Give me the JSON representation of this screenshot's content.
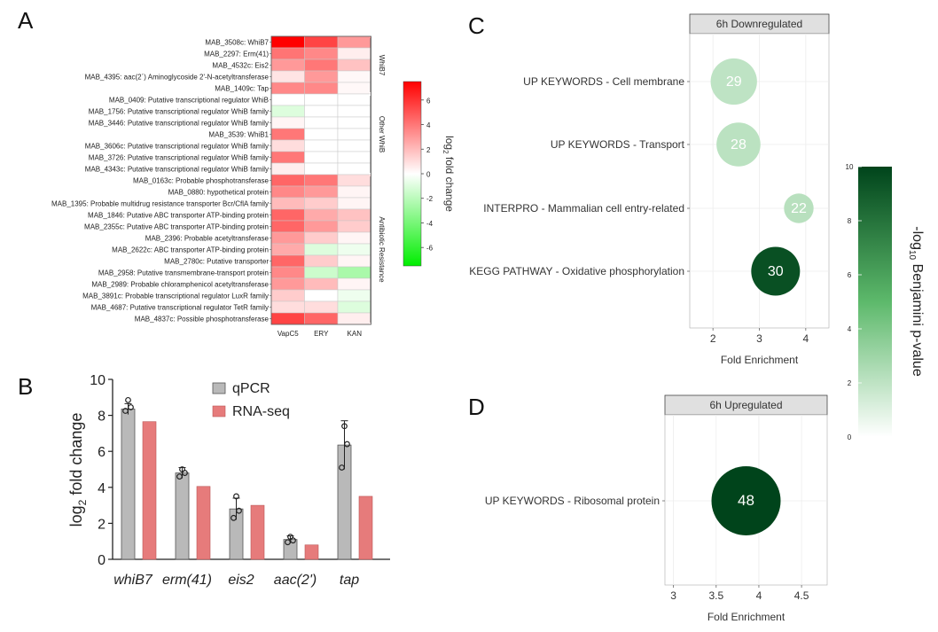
{
  "panels": {
    "a": "A",
    "b": "B",
    "c": "C",
    "d": "D"
  },
  "colors": {
    "heat_high": "#ff0000",
    "heat_mid": "#ffffff",
    "heat_low": "#00ee00",
    "qpcr": "#b9b9b9",
    "rnaseq": "#e67b7b",
    "strip": "#e0e0e0",
    "bubble_low": "#ffffff",
    "bubble_high": "#00441b"
  },
  "chart_data": [
    {
      "type": "heatmap",
      "panel": "A",
      "columns": [
        "VapC5",
        "ERY",
        "KAN"
      ],
      "rows": [
        "MAB_3508c: WhiB7",
        "MAB_2297: Erm(41)",
        "MAB_4532c: Eis2",
        "MAB_4395: aac(2´) Aminoglycoside 2'-N-acetyltransferase",
        "MAB_1409c: Tap",
        "MAB_0409: Putative transcriptional regulator WhiB",
        "MAB_1756: Putative transcriptional regulator WhiB family",
        "MAB_3446: Putative transcriptional regulator WhiB family",
        "MAB_3539: WhiB1",
        "MAB_3606c: Putative transcriptional regulator WhiB family",
        "MAB_3726: Putative transcriptional regulator WhiB family",
        "MAB_4343c: Putative transcriptional regulator WhiB family",
        "MAB_0163c: Probable phosphotransferase",
        "MAB_0880: hypothetical protein",
        "MAB_1395: Probable multidrug resistance transporter Bcr/CflA family",
        "MAB_1846: Putative ABC transporter ATP-binding protein",
        "MAB_2355c: Putative ABC transporter ATP-binding protein",
        "MAB_2396: Probable acetyltransferase",
        "MAB_2622c: ABC transporter ATP-binding protein",
        "MAB_2780c: Putative transporter",
        "MAB_2958: Putative transmembrane-transport protein",
        "MAB_2989: Probable chloramphenicol acetyltransferase",
        "MAB_3891c: Probable transcriptional regulator LuxR family",
        "MAB_4687: Putative transcriptional regulator TetR family",
        "MAB_4837c: Possible phosphotransferase"
      ],
      "values": [
        [
          7.7,
          5.5,
          3.0
        ],
        [
          4.1,
          3.5,
          0.5
        ],
        [
          3.0,
          4.0,
          1.8
        ],
        [
          0.8,
          3.0,
          0.2
        ],
        [
          3.5,
          3.5,
          0.2
        ],
        [
          0.0,
          0.0,
          0.0
        ],
        [
          -1.0,
          0.0,
          0.0
        ],
        [
          0.3,
          0.0,
          0.0
        ],
        [
          4.0,
          0.0,
          0.0
        ],
        [
          1.0,
          0.0,
          0.0
        ],
        [
          4.0,
          0.0,
          0.0
        ],
        [
          0.5,
          0.0,
          0.0
        ],
        [
          4.5,
          4.0,
          1.0
        ],
        [
          3.5,
          3.0,
          0.3
        ],
        [
          2.0,
          1.5,
          0.3
        ],
        [
          4.5,
          2.5,
          1.8
        ],
        [
          4.5,
          3.0,
          1.5
        ],
        [
          3.0,
          1.5,
          0.3
        ],
        [
          2.5,
          -1.0,
          -0.5
        ],
        [
          4.5,
          1.5,
          0.3
        ],
        [
          3.5,
          -1.5,
          -2.5
        ],
        [
          3.0,
          2.0,
          0.3
        ],
        [
          1.5,
          0.0,
          -0.5
        ],
        [
          1.0,
          1.0,
          -1.0
        ],
        [
          5.5,
          4.5,
          0.5
        ]
      ],
      "groups": [
        {
          "label": "WhiB7",
          "start": 0,
          "end": 4
        },
        {
          "label": "Other WhiB",
          "start": 5,
          "end": 11
        },
        {
          "label": "Antibiotic Resistance",
          "start": 12,
          "end": 24
        }
      ],
      "colorbar": {
        "ticks": [
          6,
          4,
          2,
          0,
          -2,
          -4,
          -6
        ],
        "range": [
          -7.5,
          7.5
        ],
        "label_pre": "log",
        "label_sub": "2",
        "label_post": " fold change"
      }
    },
    {
      "type": "bar",
      "panel": "B",
      "categories": [
        "whiB7",
        "erm(41)",
        "eis2",
        "aac(2')",
        "tap"
      ],
      "series": [
        {
          "name": "qPCR",
          "values": [
            8.35,
            4.8,
            2.8,
            1.1,
            6.35
          ],
          "error": [
            0.3,
            0.3,
            0.6,
            0.2,
            1.35
          ],
          "points": [
            [
              8.25,
              8.45,
              8.85
            ],
            [
              4.6,
              4.8,
              5.0
            ],
            [
              2.3,
              2.7,
              3.5
            ],
            [
              0.95,
              1.05,
              1.25
            ],
            [
              5.1,
              6.4,
              7.4
            ]
          ]
        },
        {
          "name": "RNA-seq",
          "values": [
            7.65,
            4.05,
            3.0,
            0.8,
            3.5
          ]
        }
      ],
      "ylabel_pre": "log",
      "ylabel_sub": "2",
      "ylabel_post": " fold change",
      "ylim": [
        0,
        10
      ],
      "yticks": [
        0,
        2,
        4,
        6,
        8,
        10
      ]
    },
    {
      "type": "scatter",
      "panel": "C",
      "strip_title": "6h Downregulated",
      "terms": [
        {
          "label": "UP KEYWORDS - Cell membrane",
          "fold_enrichment": 2.45,
          "count": 29,
          "neg_log10_p": 2.0
        },
        {
          "label": "UP KEYWORDS - Transport",
          "fold_enrichment": 2.55,
          "count": 28,
          "neg_log10_p": 2.1
        },
        {
          "label": "INTERPRO - Mammalian cell entry-related",
          "fold_enrichment": 3.85,
          "count": 22,
          "neg_log10_p": 2.2
        },
        {
          "label": "KEGG PATHWAY - Oxidative phosphorylation",
          "fold_enrichment": 3.35,
          "count": 30,
          "neg_log10_p": 9.5
        }
      ],
      "xlabel": "Fold Enrichment",
      "xticks": [
        2,
        3,
        4
      ],
      "xlim": [
        1.5,
        4.5
      ]
    },
    {
      "type": "scatter",
      "panel": "D",
      "strip_title": "6h Upregulated",
      "terms": [
        {
          "label": "UP KEYWORDS - Ribosomal protein",
          "fold_enrichment": 3.85,
          "count": 48,
          "neg_log10_p": 10
        }
      ],
      "xlabel": "Fold Enrichment",
      "xticks": [
        "3",
        "3.5",
        "4",
        "4.5"
      ],
      "xlim": [
        2.9,
        4.8
      ]
    },
    {
      "type": "colorbar",
      "panel": "CD",
      "ticks": [
        10,
        8,
        6,
        4,
        2,
        0
      ],
      "range": [
        0,
        10
      ],
      "label_pre": "-log",
      "label_sub": "10",
      "label_post": " Benjamini p-value"
    }
  ]
}
